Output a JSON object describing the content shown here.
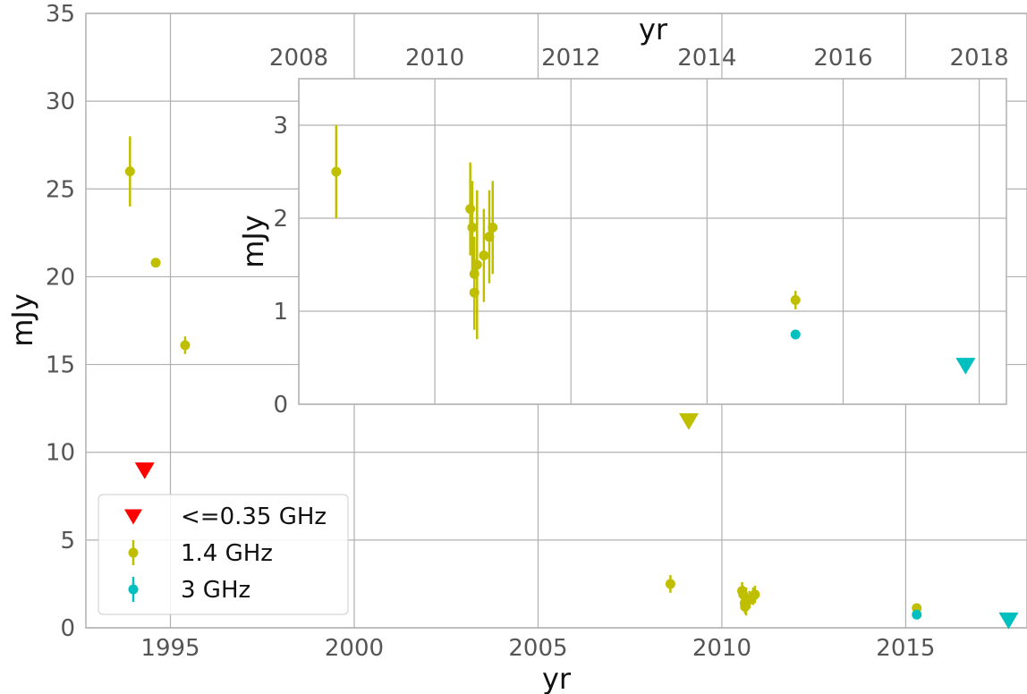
{
  "chart_data": [
    {
      "type": "scatter",
      "title": "",
      "xlabel": "yr",
      "ylabel": "mJy",
      "xlim": [
        1992.7,
        2018.3
      ],
      "ylim": [
        0,
        35
      ],
      "xticks": [
        1995,
        2000,
        2005,
        2010,
        2015
      ],
      "yticks": [
        0,
        5,
        10,
        15,
        20,
        25,
        30,
        35
      ],
      "grid": true,
      "legend": "lower-left",
      "series": [
        {
          "name": "<=0.35 GHz",
          "color": "#ff0000",
          "marker": "triangle-down",
          "points": [
            {
              "x": 1994.3,
              "y": 9.0
            }
          ]
        },
        {
          "name": "1.4 GHz",
          "color": "#bfbf00",
          "marker": "circle",
          "points": [
            {
              "x": 1993.9,
              "y": 26.0,
              "err": 2.0
            },
            {
              "x": 1994.6,
              "y": 20.8,
              "err": 0.1
            },
            {
              "x": 1995.4,
              "y": 16.1,
              "err": 0.5
            },
            {
              "x": 2008.6,
              "y": 2.5,
              "err": 0.5
            },
            {
              "x": 2010.55,
              "y": 2.1,
              "err": 0.5
            },
            {
              "x": 2010.58,
              "y": 1.9,
              "err": 0.5
            },
            {
              "x": 2010.62,
              "y": 1.4,
              "err": 0.4
            },
            {
              "x": 2010.63,
              "y": 1.2,
              "err": 0.4
            },
            {
              "x": 2010.66,
              "y": 1.5,
              "err": 0.8
            },
            {
              "x": 2010.75,
              "y": 1.6,
              "err": 0.5
            },
            {
              "x": 2010.85,
              "y": 1.8,
              "err": 0.5
            },
            {
              "x": 2010.9,
              "y": 1.9,
              "err": 0.5
            },
            {
              "x": 2015.3,
              "y": 1.12,
              "err": 0.1
            }
          ],
          "upper_limits": [
            {
              "x": 2009.1,
              "y": 11.8
            }
          ]
        },
        {
          "name": "3 GHz",
          "color": "#00bfbf",
          "marker": "circle",
          "points": [
            {
              "x": 2015.3,
              "y": 0.75,
              "err": 0.05
            }
          ],
          "upper_limits": [
            {
              "x": 2017.8,
              "y": 0.45
            }
          ]
        }
      ]
    },
    {
      "type": "scatter",
      "title": "",
      "xlabel": "yr",
      "ylabel": "mJy",
      "xlim": [
        2008,
        2018.4
      ],
      "ylim": [
        0,
        3.5
      ],
      "xticks": [
        2008,
        2010,
        2012,
        2014,
        2016,
        2018
      ],
      "yticks": [
        0,
        1,
        2,
        3
      ],
      "grid": true,
      "series": [
        {
          "name": "1.4 GHz",
          "color": "#bfbf00",
          "marker": "circle",
          "points": [
            {
              "x": 2008.55,
              "y": 2.5,
              "err": 0.5
            },
            {
              "x": 2010.52,
              "y": 2.1,
              "err": 0.5
            },
            {
              "x": 2010.55,
              "y": 1.9,
              "err": 0.5
            },
            {
              "x": 2010.58,
              "y": 1.4,
              "err": 0.4
            },
            {
              "x": 2010.58,
              "y": 1.2,
              "err": 0.4
            },
            {
              "x": 2010.62,
              "y": 1.5,
              "err": 0.8
            },
            {
              "x": 2010.72,
              "y": 1.6,
              "err": 0.5
            },
            {
              "x": 2010.8,
              "y": 1.8,
              "err": 0.5
            },
            {
              "x": 2010.85,
              "y": 1.9,
              "err": 0.5
            },
            {
              "x": 2015.3,
              "y": 1.12,
              "err": 0.1
            }
          ]
        },
        {
          "name": "3 GHz",
          "color": "#00bfbf",
          "marker": "circle",
          "points": [
            {
              "x": 2015.3,
              "y": 0.75,
              "err": 0.03
            }
          ],
          "upper_limits": [
            {
              "x": 2017.8,
              "y": 0.42
            }
          ]
        }
      ]
    }
  ]
}
